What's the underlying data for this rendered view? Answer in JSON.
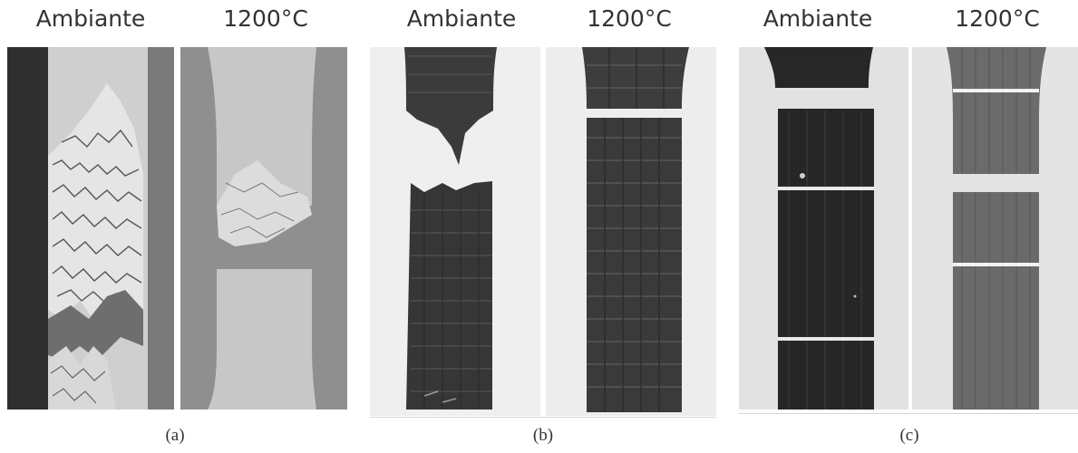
{
  "panels": [
    {
      "label_left": "Ambiante",
      "label_right": "1200°C",
      "caption": "(a)"
    },
    {
      "label_left": "Ambiante",
      "label_right": "1200°C",
      "caption": "(b)"
    },
    {
      "label_left": "Ambiante",
      "label_right": "1200°C",
      "caption": "(c)"
    }
  ],
  "colors": {
    "label_text": "#333333",
    "panel_a_background": "#8f8f8f",
    "panel_a_specimen": "#c9c9c9",
    "panel_b_background": "#eeeeee",
    "panel_b_specimen": "#3a3a3a",
    "panel_c_background": "#e3e3e3",
    "panel_c_specimen_dark": "#262626",
    "panel_c_specimen_grey": "#6d6d6d"
  }
}
